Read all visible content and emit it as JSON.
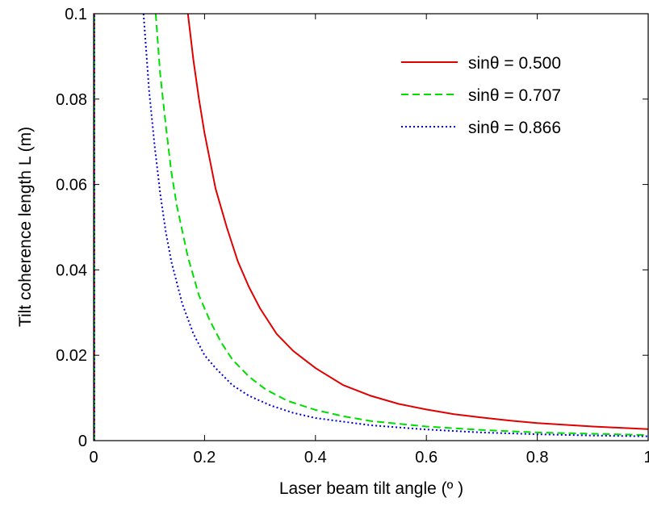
{
  "chart_data": {
    "type": "line",
    "xlabel": "Laser beam tilt angle  (º )",
    "ylabel": "Tilt coherence length L   (m)",
    "xlim": [
      0,
      1
    ],
    "ylim": [
      0,
      0.1
    ],
    "xticks": [
      "0",
      "0.2",
      "0.4",
      "0.6",
      "0.8",
      "1"
    ],
    "yticks": [
      "0",
      "0.02",
      "0.04",
      "0.06",
      "0.08",
      "0.1"
    ],
    "grid": false,
    "legend_position": "top-right",
    "series": [
      {
        "name": "sinθ = 0.500",
        "color": "#e00000",
        "style": "solid",
        "points": [
          [
            0.17,
            0.1
          ],
          [
            0.18,
            0.089
          ],
          [
            0.19,
            0.08
          ],
          [
            0.2,
            0.072
          ],
          [
            0.22,
            0.059
          ],
          [
            0.24,
            0.05
          ],
          [
            0.26,
            0.042
          ],
          [
            0.28,
            0.036
          ],
          [
            0.3,
            0.031
          ],
          [
            0.33,
            0.025
          ],
          [
            0.36,
            0.021
          ],
          [
            0.4,
            0.017
          ],
          [
            0.45,
            0.013
          ],
          [
            0.5,
            0.0105
          ],
          [
            0.55,
            0.0086
          ],
          [
            0.6,
            0.0073
          ],
          [
            0.65,
            0.0062
          ],
          [
            0.7,
            0.0054
          ],
          [
            0.75,
            0.0047
          ],
          [
            0.8,
            0.0041
          ],
          [
            0.85,
            0.0037
          ],
          [
            0.9,
            0.0033
          ],
          [
            0.95,
            0.003
          ],
          [
            1.0,
            0.0027
          ]
        ]
      },
      {
        "name": "sinθ = 0.707",
        "color": "#00dd00",
        "style": "dashed",
        "points": [
          [
            0.112,
            0.1
          ],
          [
            0.12,
            0.086
          ],
          [
            0.13,
            0.074
          ],
          [
            0.14,
            0.063
          ],
          [
            0.15,
            0.055
          ],
          [
            0.17,
            0.043
          ],
          [
            0.19,
            0.034
          ],
          [
            0.21,
            0.028
          ],
          [
            0.23,
            0.023
          ],
          [
            0.25,
            0.019
          ],
          [
            0.28,
            0.015
          ],
          [
            0.31,
            0.012
          ],
          [
            0.35,
            0.0093
          ],
          [
            0.4,
            0.0072
          ],
          [
            0.45,
            0.0057
          ],
          [
            0.5,
            0.0046
          ],
          [
            0.6,
            0.0033
          ],
          [
            0.7,
            0.0025
          ],
          [
            0.8,
            0.0019
          ],
          [
            0.9,
            0.0016
          ],
          [
            1.0,
            0.0013
          ]
        ]
      },
      {
        "name": "sinθ = 0.866",
        "color": "#0000dd",
        "style": "dotted",
        "points": [
          [
            0.09,
            0.1
          ],
          [
            0.1,
            0.082
          ],
          [
            0.11,
            0.069
          ],
          [
            0.12,
            0.058
          ],
          [
            0.13,
            0.049
          ],
          [
            0.14,
            0.042
          ],
          [
            0.16,
            0.032
          ],
          [
            0.18,
            0.025
          ],
          [
            0.2,
            0.02
          ],
          [
            0.22,
            0.017
          ],
          [
            0.25,
            0.013
          ],
          [
            0.28,
            0.0105
          ],
          [
            0.32,
            0.0082
          ],
          [
            0.36,
            0.0065
          ],
          [
            0.4,
            0.0053
          ],
          [
            0.5,
            0.0036
          ],
          [
            0.6,
            0.0026
          ],
          [
            0.7,
            0.0019
          ],
          [
            0.8,
            0.0015
          ],
          [
            0.9,
            0.0012
          ],
          [
            1.0,
            0.001
          ]
        ]
      }
    ]
  }
}
